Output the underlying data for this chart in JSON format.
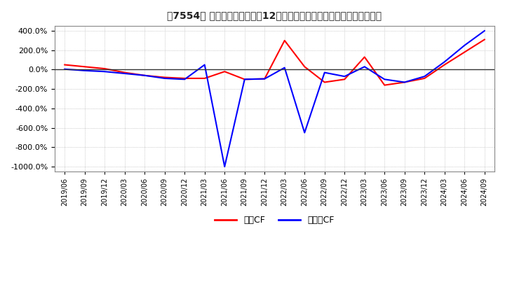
{
  "title": "【7554】 キャッシュフローの12か月移動合計の対前年同期増減率の推移",
  "legend_labels": [
    "営業CF",
    "フリーCF"
  ],
  "line_colors": [
    "#ff0000",
    "#0000ff"
  ],
  "background_color": "#ffffff",
  "plot_bg_color": "#ffffff",
  "grid_color": "#aaaaaa",
  "ylim": [
    -1050,
    450
  ],
  "yticks": [
    400,
    200,
    0,
    -200,
    -400,
    -600,
    -800,
    -1000
  ],
  "x_labels": [
    "2019/06",
    "2019/09",
    "2019/12",
    "2020/03",
    "2020/06",
    "2020/09",
    "2020/12",
    "2021/03",
    "2021/06",
    "2021/09",
    "2021/12",
    "2022/03",
    "2022/06",
    "2022/09",
    "2022/12",
    "2023/03",
    "2023/06",
    "2023/09",
    "2023/12",
    "2024/03",
    "2024/06",
    "2024/09"
  ],
  "operating_cf": [
    50,
    30,
    10,
    -30,
    -60,
    -80,
    -90,
    -90,
    -20,
    -100,
    -95,
    300,
    30,
    -130,
    -100,
    130,
    -160,
    -130,
    -90,
    50,
    180,
    310
  ],
  "free_cf": [
    5,
    -10,
    -20,
    -40,
    -60,
    -90,
    -100,
    50,
    -1000,
    -100,
    -95,
    20,
    -650,
    -30,
    -70,
    30,
    -100,
    -130,
    -70,
    80,
    250,
    400
  ]
}
